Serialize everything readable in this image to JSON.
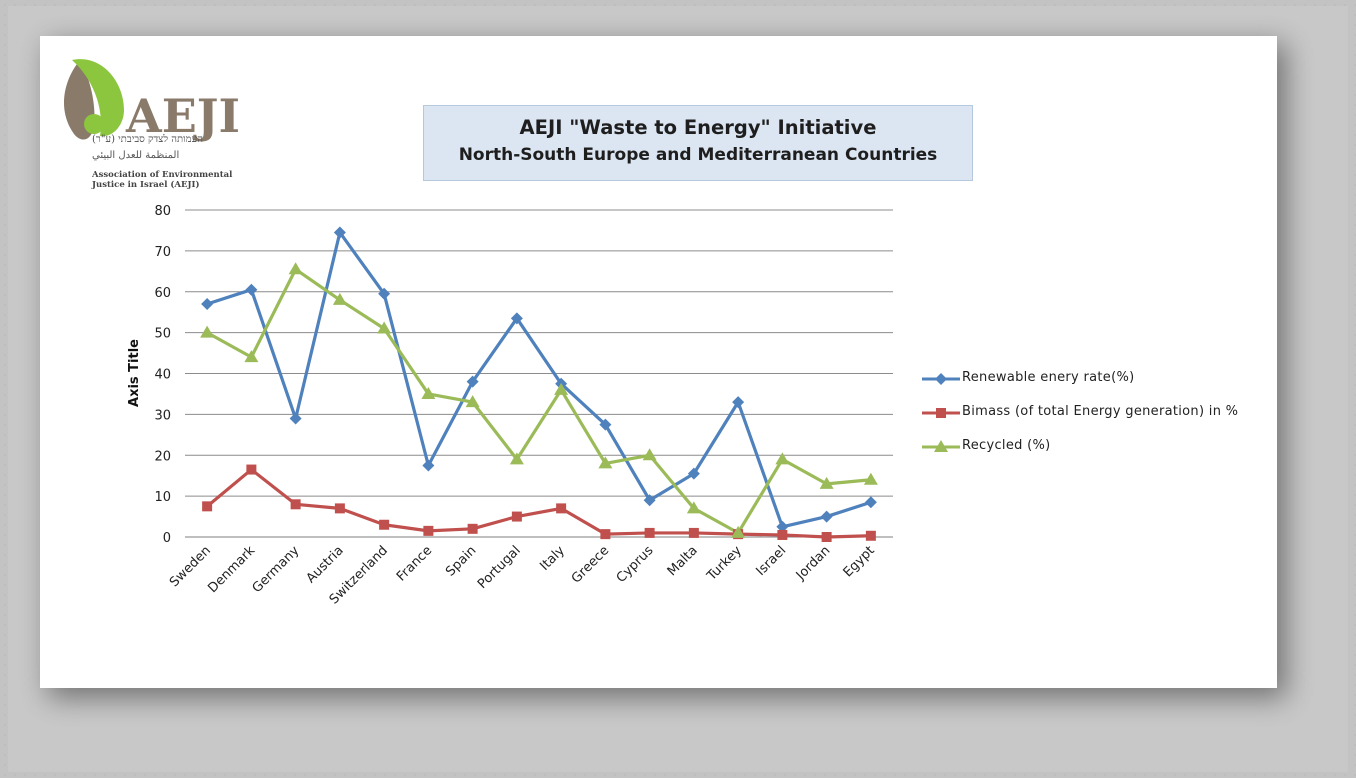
{
  "logo": {
    "name": "AEJI",
    "hebrew": "העמותה לצדק סביבתי (ע\"ר)",
    "arabic": "المنظمة للعدل البيئي",
    "english_line1": "Association of Environmental",
    "english_line2": "Justice in Israel (AEJI)"
  },
  "colors": {
    "renewable": "#4f81bd",
    "biomass": "#c0504d",
    "recycled": "#9bbb59",
    "title_box": "#dce6f2"
  },
  "chart_data": {
    "type": "line",
    "title": "AEJI \"Waste to Energy\" Initiative",
    "subtitle": "North-South Europe and Mediterranean Countries",
    "xlabel": "",
    "ylabel": "Axis Title",
    "ylim": [
      0,
      80
    ],
    "yticks": [
      0,
      10,
      20,
      30,
      40,
      50,
      60,
      70,
      80
    ],
    "grid": true,
    "legend_position": "right",
    "categories": [
      "Sweden",
      "Denmark",
      "Germany",
      "Austria",
      "Switzerland",
      "France",
      "Spain",
      "Portugal",
      "Italy",
      "Greece",
      "Cyprus",
      "Malta",
      "Turkey",
      "Israel",
      "Jordan",
      "Egypt"
    ],
    "series": [
      {
        "name": "Renewable enery rate(%)",
        "marker": "diamond",
        "color": "#4f81bd",
        "values": [
          57,
          60.5,
          29,
          74.5,
          59.5,
          17.5,
          38,
          53.5,
          37.5,
          27.5,
          9,
          15.5,
          33,
          2.5,
          5,
          8.5
        ]
      },
      {
        "name": "Bimass (of total Energy generation) in %",
        "marker": "square",
        "color": "#c0504d",
        "values": [
          7.5,
          16.5,
          8,
          7,
          3,
          1.5,
          2,
          5,
          7,
          0.7,
          1,
          1,
          0.7,
          0.5,
          0,
          0.3
        ]
      },
      {
        "name": "Recycled (%)",
        "marker": "triangle",
        "color": "#9bbb59",
        "values": [
          50,
          44,
          65.5,
          58,
          51,
          35,
          33,
          19,
          36,
          18,
          20,
          7,
          1,
          19,
          13,
          14
        ]
      }
    ]
  }
}
